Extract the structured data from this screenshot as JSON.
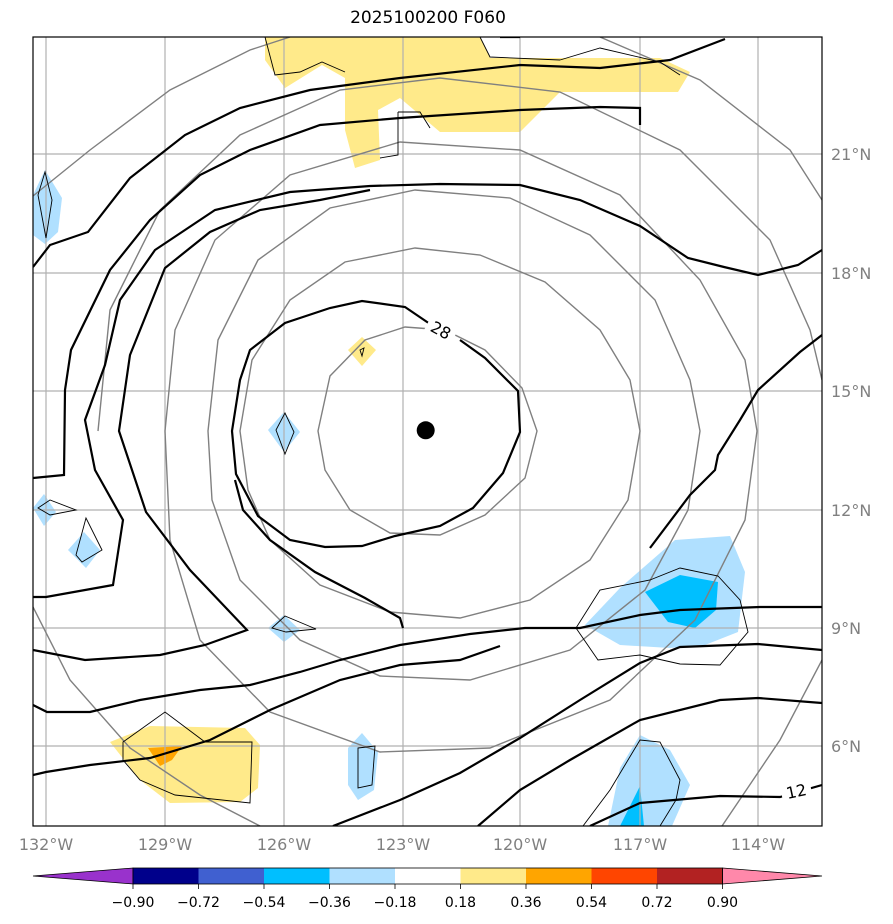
{
  "title": "2025100200 F060",
  "map": {
    "lon_labels": [
      "132°W",
      "129°W",
      "126°W",
      "123°W",
      "120°W",
      "117°W",
      "114°W"
    ],
    "lat_labels": [
      "21°N",
      "18°N",
      "15°N",
      "12°N",
      "9°N",
      "6°N"
    ],
    "contour_labels": [
      "28",
      "12"
    ],
    "storm_center": {
      "lon": -122.4,
      "lat": 14.0
    },
    "colors": {
      "thick_contour": "#000000",
      "thin_contour": "#808080",
      "grid": "#b0b0b0"
    }
  },
  "colorbar": {
    "colors": [
      "#9932cc",
      "#00008b",
      "#4060d0",
      "#00bfff",
      "#b0e0ff",
      "#ffffff",
      "#ffea8a",
      "#ffa500",
      "#ff4500",
      "#b22222",
      "#ff88aa"
    ],
    "tick_labels": [
      "−0.90",
      "−0.72",
      "−0.54",
      "−0.36",
      "−0.18",
      "0.18",
      "0.36",
      "0.54",
      "0.72",
      "0.90"
    ]
  }
}
